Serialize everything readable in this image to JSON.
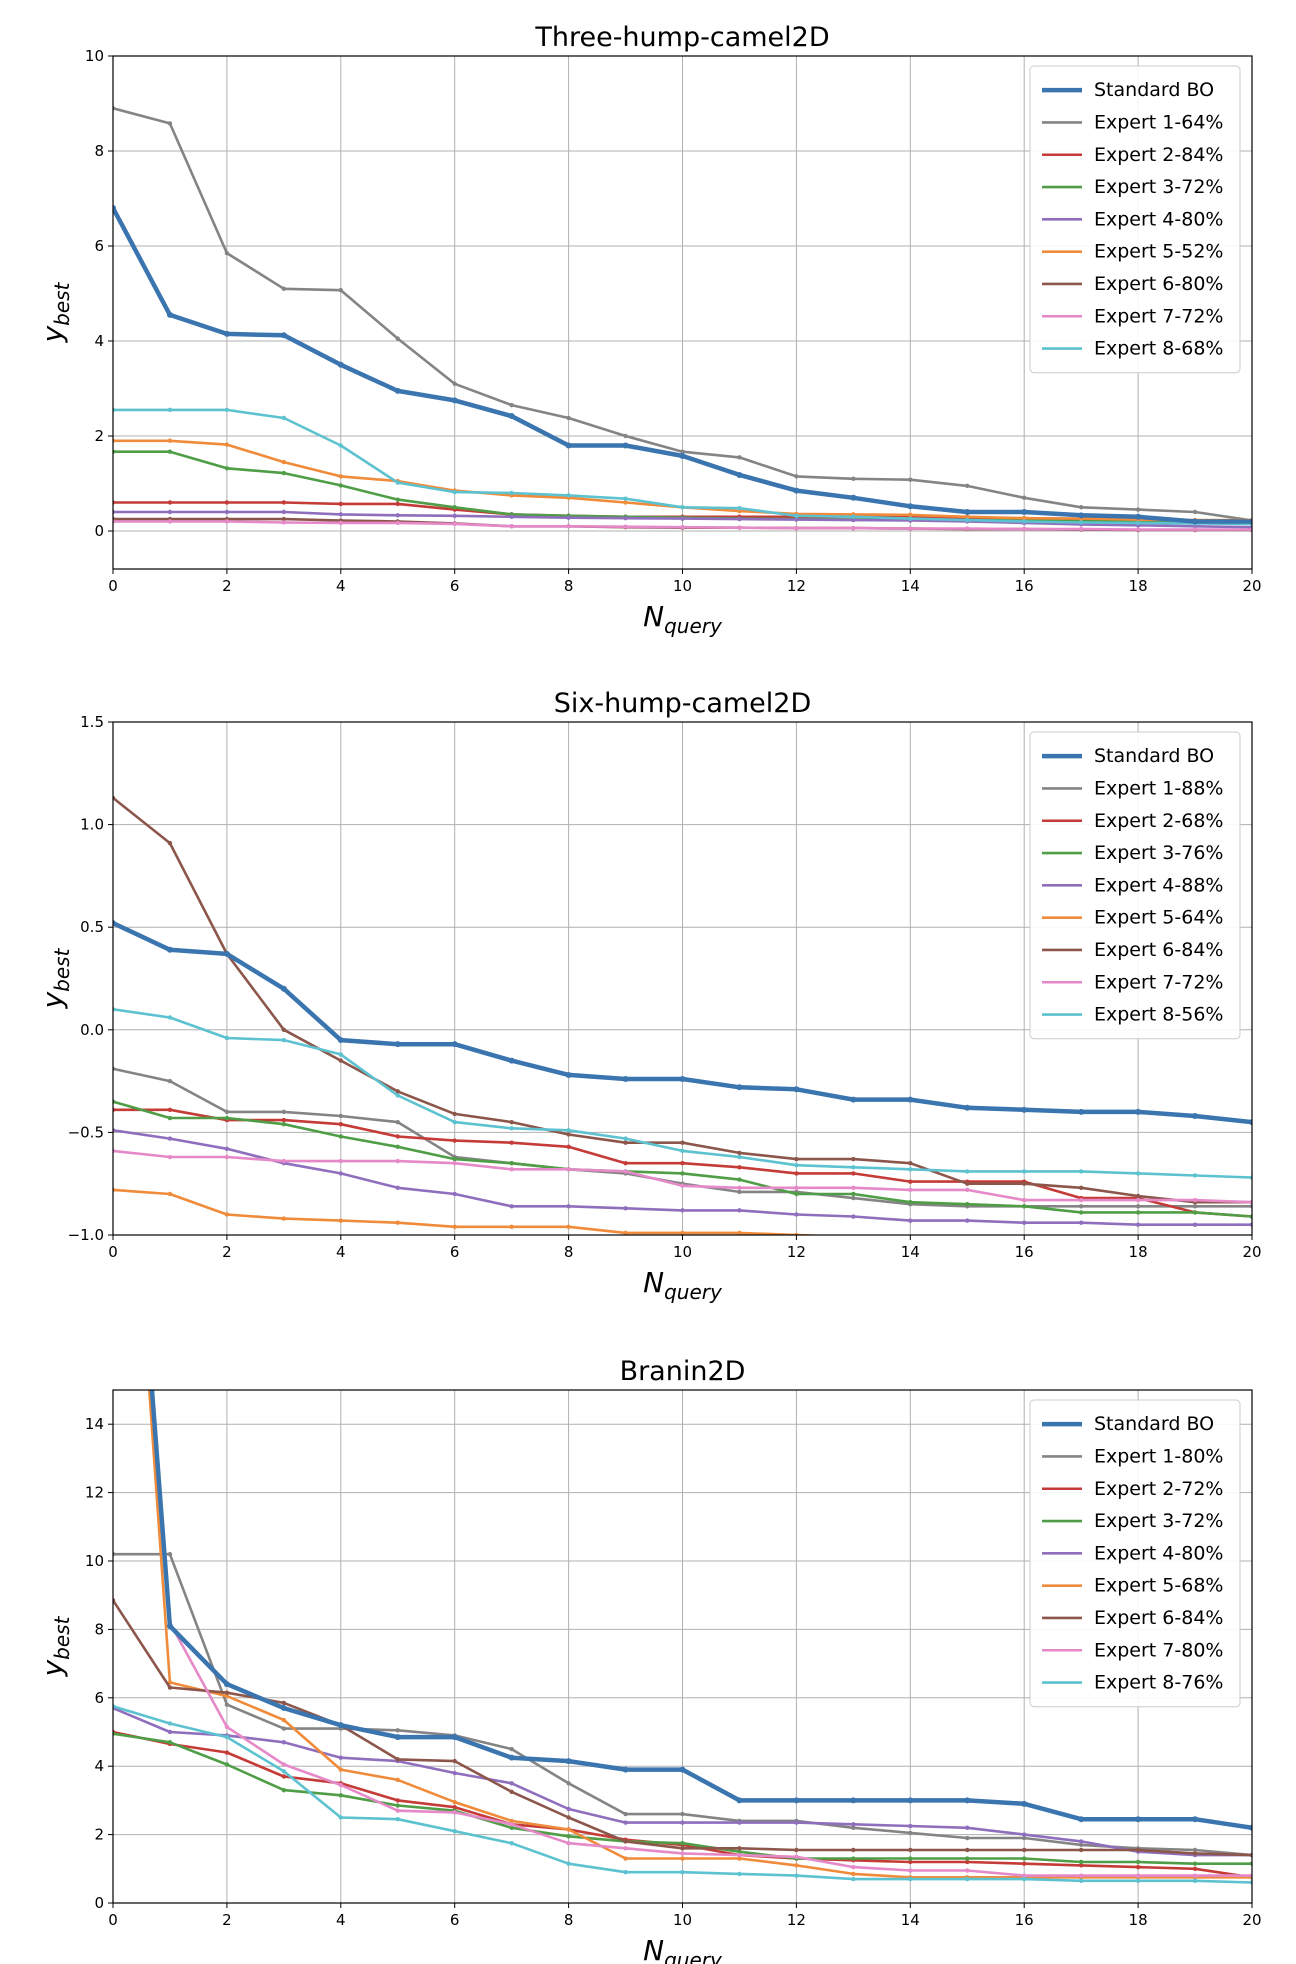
{
  "chart_data": [
    {
      "type": "line",
      "title": "Three-hump-camel2D",
      "xlabel": "N",
      "xlabel_sub": "query",
      "ylabel": "y",
      "ylabel_sub": "best",
      "xlim": [
        0,
        20
      ],
      "ylim": [
        -0.8,
        10
      ],
      "xticks": [
        0,
        2,
        4,
        6,
        8,
        10,
        12,
        14,
        16,
        18,
        20
      ],
      "yticks": [
        0,
        2,
        4,
        6,
        8,
        10
      ],
      "ytick_labels": [
        "0",
        "2",
        "4",
        "6",
        "8",
        "10"
      ],
      "grid": true,
      "legend": "top-right",
      "x": [
        0,
        1,
        2,
        3,
        4,
        5,
        6,
        7,
        8,
        9,
        10,
        11,
        12,
        13,
        14,
        15,
        16,
        17,
        18,
        19,
        20
      ],
      "series": [
        {
          "name": "Standard BO",
          "color": "#3b75af",
          "values": [
            6.8,
            4.55,
            4.15,
            4.12,
            3.5,
            2.95,
            2.75,
            2.42,
            1.8,
            1.8,
            1.58,
            1.18,
            0.85,
            0.7,
            0.52,
            0.4,
            0.4,
            0.33,
            0.3,
            0.2,
            0.2
          ]
        },
        {
          "name": "Expert 1-64%",
          "color": "#848484",
          "values": [
            8.9,
            8.58,
            5.85,
            5.1,
            5.07,
            4.05,
            3.1,
            2.65,
            2.38,
            2.0,
            1.67,
            1.55,
            1.15,
            1.1,
            1.08,
            0.95,
            0.7,
            0.5,
            0.45,
            0.4,
            0.22
          ]
        },
        {
          "name": "Expert 2-84%",
          "color": "#c43b37",
          "values": [
            0.6,
            0.6,
            0.6,
            0.6,
            0.57,
            0.57,
            0.45,
            0.35,
            0.32,
            0.3,
            0.3,
            0.3,
            0.3,
            0.3,
            0.3,
            0.28,
            0.27,
            0.25,
            0.23,
            0.22,
            0.22
          ]
        },
        {
          "name": "Expert 3-72%",
          "color": "#4f9d46",
          "values": [
            1.67,
            1.67,
            1.32,
            1.22,
            0.96,
            0.66,
            0.5,
            0.35,
            0.32,
            0.3,
            0.28,
            0.26,
            0.25,
            0.24,
            0.24,
            0.23,
            0.22,
            0.21,
            0.2,
            0.19,
            0.18
          ]
        },
        {
          "name": "Expert 4-80%",
          "color": "#8f6fbd",
          "values": [
            0.4,
            0.4,
            0.4,
            0.4,
            0.35,
            0.33,
            0.32,
            0.3,
            0.28,
            0.27,
            0.26,
            0.25,
            0.24,
            0.23,
            0.22,
            0.2,
            0.17,
            0.14,
            0.12,
            0.1,
            0.08
          ]
        },
        {
          "name": "Expert 5-52%",
          "color": "#ef8b3a",
          "values": [
            1.9,
            1.9,
            1.82,
            1.45,
            1.15,
            1.05,
            0.85,
            0.75,
            0.7,
            0.6,
            0.5,
            0.42,
            0.36,
            0.35,
            0.34,
            0.3,
            0.27,
            0.26,
            0.24,
            0.23,
            0.23
          ]
        },
        {
          "name": "Expert 6-80%",
          "color": "#8c564b",
          "values": [
            0.25,
            0.25,
            0.25,
            0.25,
            0.22,
            0.2,
            0.16,
            0.1,
            0.1,
            0.08,
            0.07,
            0.07,
            0.06,
            0.06,
            0.05,
            0.04,
            0.04,
            0.03,
            0.02,
            0.02,
            0.02
          ]
        },
        {
          "name": "Expert 7-72%",
          "color": "#e589c8",
          "values": [
            0.2,
            0.2,
            0.2,
            0.18,
            0.17,
            0.17,
            0.15,
            0.1,
            0.1,
            0.09,
            0.08,
            0.07,
            0.06,
            0.06,
            0.05,
            0.05,
            0.04,
            0.04,
            0.03,
            0.03,
            0.03
          ]
        },
        {
          "name": "Expert 8-68%",
          "color": "#5cc2d0",
          "values": [
            2.55,
            2.55,
            2.55,
            2.38,
            1.8,
            1.02,
            0.82,
            0.8,
            0.75,
            0.68,
            0.5,
            0.48,
            0.32,
            0.3,
            0.26,
            0.23,
            0.2,
            0.18,
            0.17,
            0.16,
            0.15
          ]
        }
      ]
    },
    {
      "type": "line",
      "title": "Six-hump-camel2D",
      "xlabel": "N",
      "xlabel_sub": "query",
      "ylabel": "y",
      "ylabel_sub": "best",
      "xlim": [
        0,
        20
      ],
      "ylim": [
        -1.0,
        1.5
      ],
      "xticks": [
        0,
        2,
        4,
        6,
        8,
        10,
        12,
        14,
        16,
        18,
        20
      ],
      "yticks": [
        -1.0,
        -0.5,
        0.0,
        0.5,
        1.0,
        1.5
      ],
      "ytick_labels": [
        "−1.0",
        "−0.5",
        "0.0",
        "0.5",
        "1.0",
        "1.5"
      ],
      "grid": true,
      "legend": "top-right",
      "x": [
        0,
        1,
        2,
        3,
        4,
        5,
        6,
        7,
        8,
        9,
        10,
        11,
        12,
        13,
        14,
        15,
        16,
        17,
        18,
        19,
        20
      ],
      "series": [
        {
          "name": "Standard BO",
          "color": "#3b75af",
          "values": [
            0.52,
            0.39,
            0.37,
            0.2,
            -0.05,
            -0.07,
            -0.07,
            -0.15,
            -0.22,
            -0.24,
            -0.24,
            -0.28,
            -0.29,
            -0.34,
            -0.34,
            -0.38,
            -0.39,
            -0.4,
            -0.4,
            -0.42,
            -0.45
          ]
        },
        {
          "name": "Expert 1-88%",
          "color": "#848484",
          "values": [
            -0.19,
            -0.25,
            -0.4,
            -0.4,
            -0.42,
            -0.45,
            -0.62,
            -0.65,
            -0.68,
            -0.7,
            -0.75,
            -0.79,
            -0.79,
            -0.82,
            -0.85,
            -0.86,
            -0.86,
            -0.86,
            -0.86,
            -0.86,
            -0.86
          ]
        },
        {
          "name": "Expert 2-68%",
          "color": "#c43b37",
          "values": [
            -0.39,
            -0.39,
            -0.44,
            -0.44,
            -0.46,
            -0.52,
            -0.54,
            -0.55,
            -0.57,
            -0.65,
            -0.65,
            -0.67,
            -0.7,
            -0.7,
            -0.74,
            -0.74,
            -0.74,
            -0.82,
            -0.82,
            -0.89,
            -0.91
          ]
        },
        {
          "name": "Expert 3-76%",
          "color": "#4f9d46",
          "values": [
            -0.35,
            -0.43,
            -0.43,
            -0.46,
            -0.52,
            -0.57,
            -0.63,
            -0.65,
            -0.68,
            -0.69,
            -0.7,
            -0.73,
            -0.8,
            -0.8,
            -0.84,
            -0.85,
            -0.86,
            -0.89,
            -0.89,
            -0.89,
            -0.91
          ]
        },
        {
          "name": "Expert 4-88%",
          "color": "#8f6fbd",
          "values": [
            -0.49,
            -0.53,
            -0.58,
            -0.65,
            -0.7,
            -0.77,
            -0.8,
            -0.86,
            -0.86,
            -0.87,
            -0.88,
            -0.88,
            -0.9,
            -0.91,
            -0.93,
            -0.93,
            -0.94,
            -0.94,
            -0.95,
            -0.95,
            -0.95
          ]
        },
        {
          "name": "Expert 5-64%",
          "color": "#ef8b3a",
          "values": [
            -0.78,
            -0.8,
            -0.9,
            -0.92,
            -0.93,
            -0.94,
            -0.96,
            -0.96,
            -0.96,
            -0.99,
            -0.99,
            -0.99,
            -1.0,
            -1.01,
            -1.01,
            -1.02,
            -1.02,
            -1.02,
            -1.02,
            -1.02,
            -1.02
          ]
        },
        {
          "name": "Expert 6-84%",
          "color": "#8c564b",
          "values": [
            1.13,
            0.91,
            0.37,
            0.0,
            -0.15,
            -0.3,
            -0.41,
            -0.45,
            -0.51,
            -0.55,
            -0.55,
            -0.6,
            -0.63,
            -0.63,
            -0.65,
            -0.75,
            -0.75,
            -0.77,
            -0.81,
            -0.84,
            -0.84
          ]
        },
        {
          "name": "Expert 7-72%",
          "color": "#e589c8",
          "values": [
            -0.59,
            -0.62,
            -0.62,
            -0.64,
            -0.64,
            -0.64,
            -0.65,
            -0.68,
            -0.68,
            -0.69,
            -0.76,
            -0.77,
            -0.77,
            -0.77,
            -0.78,
            -0.78,
            -0.83,
            -0.83,
            -0.83,
            -0.83,
            -0.84
          ]
        },
        {
          "name": "Expert 8-56%",
          "color": "#5cc2d0",
          "values": [
            0.1,
            0.06,
            -0.04,
            -0.05,
            -0.12,
            -0.32,
            -0.45,
            -0.48,
            -0.49,
            -0.53,
            -0.59,
            -0.62,
            -0.66,
            -0.67,
            -0.68,
            -0.69,
            -0.69,
            -0.69,
            -0.7,
            -0.71,
            -0.72
          ]
        }
      ]
    },
    {
      "type": "line",
      "title": "Branin2D",
      "xlabel": "N",
      "xlabel_sub": "query",
      "ylabel": "y",
      "ylabel_sub": "best",
      "xlim": [
        0,
        20
      ],
      "ylim": [
        0,
        15
      ],
      "xticks": [
        0,
        2,
        4,
        6,
        8,
        10,
        12,
        14,
        16,
        18,
        20
      ],
      "yticks": [
        0,
        2,
        4,
        6,
        8,
        10,
        12,
        14
      ],
      "ytick_labels": [
        "0",
        "2",
        "4",
        "6",
        "8",
        "10",
        "12",
        "14"
      ],
      "grid": true,
      "legend": "top-right",
      "x": [
        0,
        1,
        2,
        3,
        4,
        5,
        6,
        7,
        8,
        9,
        10,
        11,
        12,
        13,
        14,
        15,
        16,
        17,
        18,
        19,
        20
      ],
      "series": [
        {
          "name": "Standard BO",
          "color": "#3b75af",
          "values": [
            30,
            8.1,
            6.4,
            5.7,
            5.2,
            4.85,
            4.85,
            4.25,
            4.15,
            3.9,
            3.9,
            3.0,
            3.0,
            3.0,
            3.0,
            3.0,
            2.9,
            2.45,
            2.45,
            2.45,
            2.2
          ]
        },
        {
          "name": "Expert 1-80%",
          "color": "#848484",
          "values": [
            10.2,
            10.2,
            5.8,
            5.1,
            5.1,
            5.05,
            4.9,
            4.5,
            3.5,
            2.6,
            2.6,
            2.4,
            2.4,
            2.2,
            2.05,
            1.9,
            1.9,
            1.7,
            1.6,
            1.55,
            1.4
          ]
        },
        {
          "name": "Expert 2-72%",
          "color": "#c43b37",
          "values": [
            5.0,
            4.65,
            4.4,
            3.7,
            3.5,
            3.0,
            2.8,
            2.3,
            2.15,
            1.85,
            1.7,
            1.4,
            1.3,
            1.25,
            1.2,
            1.2,
            1.15,
            1.1,
            1.05,
            1.0,
            0.75
          ]
        },
        {
          "name": "Expert 3-72%",
          "color": "#4f9d46",
          "values": [
            4.95,
            4.7,
            4.05,
            3.3,
            3.15,
            2.85,
            2.7,
            2.2,
            1.95,
            1.8,
            1.75,
            1.5,
            1.3,
            1.3,
            1.3,
            1.3,
            1.3,
            1.2,
            1.2,
            1.15,
            1.15
          ]
        },
        {
          "name": "Expert 4-80%",
          "color": "#8f6fbd",
          "values": [
            5.7,
            5.0,
            4.9,
            4.7,
            4.25,
            4.15,
            3.8,
            3.5,
            2.75,
            2.35,
            2.35,
            2.35,
            2.35,
            2.3,
            2.25,
            2.2,
            2.0,
            1.8,
            1.5,
            1.4,
            1.4
          ]
        },
        {
          "name": "Expert 5-68%",
          "color": "#ef8b3a",
          "values": [
            30,
            6.45,
            6.05,
            5.35,
            3.9,
            3.6,
            2.95,
            2.4,
            2.15,
            1.3,
            1.3,
            1.3,
            1.1,
            0.85,
            0.75,
            0.75,
            0.75,
            0.75,
            0.75,
            0.75,
            0.75
          ]
        },
        {
          "name": "Expert 6-84%",
          "color": "#8c564b",
          "values": [
            8.85,
            6.3,
            6.15,
            5.85,
            5.2,
            4.2,
            4.15,
            3.25,
            2.5,
            1.8,
            1.6,
            1.6,
            1.55,
            1.55,
            1.55,
            1.55,
            1.55,
            1.55,
            1.55,
            1.45,
            1.4
          ]
        },
        {
          "name": "Expert 7-80%",
          "color": "#e589c8",
          "values": [
            30,
            8.2,
            5.15,
            4.05,
            3.45,
            2.7,
            2.65,
            2.3,
            1.75,
            1.6,
            1.45,
            1.4,
            1.35,
            1.05,
            0.95,
            0.95,
            0.8,
            0.8,
            0.8,
            0.8,
            0.8
          ]
        },
        {
          "name": "Expert 8-76%",
          "color": "#5cc2d0",
          "values": [
            5.75,
            5.25,
            4.85,
            3.85,
            2.5,
            2.45,
            2.1,
            1.75,
            1.15,
            0.9,
            0.9,
            0.85,
            0.8,
            0.7,
            0.7,
            0.7,
            0.7,
            0.65,
            0.65,
            0.65,
            0.6
          ]
        }
      ]
    }
  ]
}
